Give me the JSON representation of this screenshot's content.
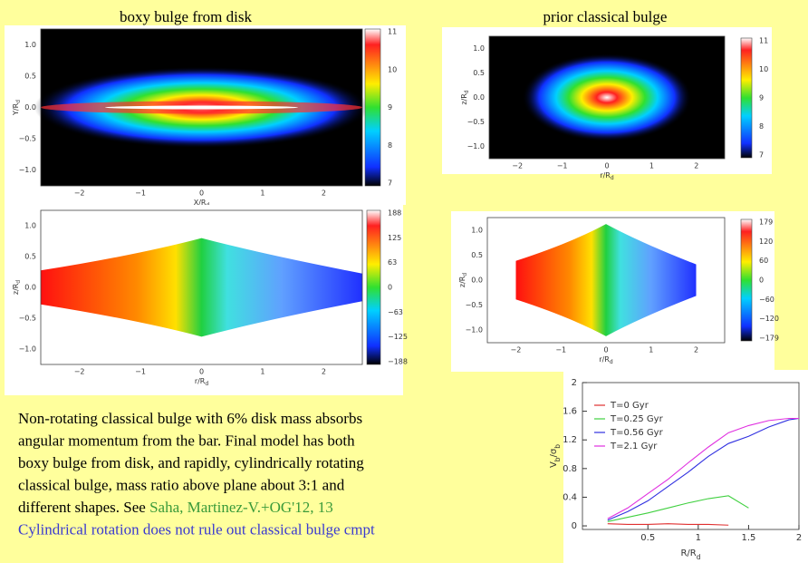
{
  "titles": [
    "boxy bulge from disk",
    "prior classical bulge"
  ],
  "panels": [
    {
      "yticks": [
        "1.0",
        "0.5",
        "0.0",
        "−0.5",
        "−1.0"
      ],
      "xticks": [
        "−2",
        "−1",
        "0",
        "1",
        "2"
      ],
      "colorbar": [
        "11",
        "10",
        "9",
        "8",
        "7"
      ],
      "xlabel": {
        "main": "X/R",
        "sub": "d"
      },
      "ylabel": {
        "main": "Y/R",
        "sub": "d"
      }
    },
    {
      "yticks": [
        "1.0",
        "0.5",
        "0.0",
        "−0.5",
        "−1.0"
      ],
      "xticks": [
        "−2",
        "−1",
        "0",
        "1",
        "2"
      ],
      "colorbar": [
        "11",
        "10",
        "9",
        "8",
        "7"
      ],
      "xlabel": {
        "main": "r/R",
        "sub": "d"
      },
      "ylabel": {
        "main": "z/R",
        "sub": "d"
      }
    },
    {
      "yticks": [
        "1.0",
        "0.5",
        "0.0",
        "−0.5",
        "−1.0"
      ],
      "xticks": [
        "−2",
        "−1",
        "0",
        "1",
        "2"
      ],
      "colorbar": [
        "188",
        "125",
        "63",
        "0",
        "−63",
        "−125",
        "−188"
      ],
      "xlabel": {
        "main": "r/R",
        "sub": "d"
      },
      "ylabel": {
        "main": "z/R",
        "sub": "d"
      }
    },
    {
      "yticks": [
        "1.0",
        "0.5",
        "0.0",
        "−0.5",
        "−1.0"
      ],
      "xticks": [
        "−2",
        "−1",
        "0",
        "1",
        "2"
      ],
      "colorbar": [
        "179",
        "120",
        "60",
        "0",
        "−60",
        "−120",
        "−179"
      ],
      "xlabel": {
        "main": "r/R",
        "sub": "d"
      },
      "ylabel": {
        "main": "z/R",
        "sub": "d"
      }
    }
  ],
  "text": {
    "lines": [
      [
        {
          "text": "Non-rotating classical bulge with 6% disk mass absorbs",
          "color": "#000000"
        }
      ],
      [
        {
          "text": "angular momentum from the bar. Final model has both",
          "color": "#000000"
        }
      ],
      [
        {
          "text": "boxy bulge from disk, and rapidly, cylindrically rotating",
          "color": "#000000"
        }
      ],
      [
        {
          "text": "classical bulge, mass ratio above plane about 3:1 and",
          "color": "#000000"
        }
      ],
      [
        {
          "text": "different shapes. See ",
          "color": "#000000"
        },
        {
          "text": "Saha, Martinez-V.+OG'12, 13",
          "color": "#3a9a3a"
        }
      ],
      [
        {
          "text": "Cylindrical rotation does not rule out classical bulge cmpt",
          "color": "#3a3ad0"
        }
      ]
    ]
  },
  "chart_data": {
    "type": "line",
    "x": [
      0.1,
      0.3,
      0.5,
      0.7,
      0.9,
      1.1,
      1.3,
      1.5,
      1.7,
      1.9,
      2.0
    ],
    "series": [
      {
        "name": "T=0 Gyr",
        "color": "#e03030",
        "values": [
          0.03,
          0.02,
          0.02,
          0.03,
          0.02,
          0.02,
          0.01,
          null,
          null,
          null,
          null
        ]
      },
      {
        "name": "T=0.25 Gyr",
        "color": "#40d040",
        "values": [
          0.06,
          0.12,
          0.18,
          0.25,
          0.32,
          0.38,
          0.42,
          0.25,
          null,
          null,
          null
        ]
      },
      {
        "name": "T=0.56 Gyr",
        "color": "#3030e0",
        "values": [
          0.08,
          0.2,
          0.35,
          0.55,
          0.75,
          0.97,
          1.15,
          1.25,
          1.38,
          1.48,
          1.5
        ]
      },
      {
        "name": "T=2.1 Gyr",
        "color": "#e030e0",
        "values": [
          0.1,
          0.25,
          0.45,
          0.65,
          0.88,
          1.1,
          1.3,
          1.4,
          1.47,
          1.5,
          1.5
        ]
      }
    ],
    "xlim": [
      -0.15,
      2
    ],
    "ylim": [
      -0.05,
      2
    ],
    "xticks": [
      0.5,
      1,
      1.5,
      2
    ],
    "yticks": [
      0,
      0.4,
      0.8,
      1.2,
      1.6,
      2
    ],
    "xlabel": {
      "main": "R/R",
      "sub": "d"
    },
    "ylabel": {
      "main": "V",
      "sub": "b",
      "main2": "/σ",
      "sub2": "b"
    }
  }
}
